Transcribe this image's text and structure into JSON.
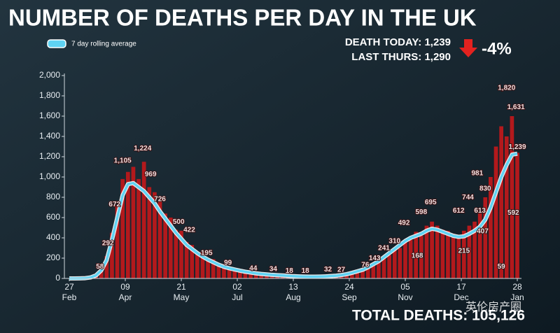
{
  "chart_data": {
    "type": "bar",
    "title": "NUMBER OF DEATHS PER DAY IN THE UK",
    "stats": [
      "DEATH TODAY: 1,239",
      "LAST THURS: 1,290"
    ],
    "change": "-4%",
    "total": "TOTAL DEATHS: 105,126",
    "watermark": "英伦房产圈",
    "color": "#b3191c",
    "xlim": [
      0,
      336
    ],
    "xticks": [
      {
        "value": 0,
        "label": "27 Feb"
      },
      {
        "value": 42,
        "label": "09 Apr"
      },
      {
        "value": 84,
        "label": "21 May"
      },
      {
        "value": 126,
        "label": "02 Jul"
      },
      {
        "value": 168,
        "label": "13 Aug"
      },
      {
        "value": 210,
        "label": "24 Sep"
      },
      {
        "value": 252,
        "label": "05 Nov"
      },
      {
        "value": 294,
        "label": "17 Dec"
      },
      {
        "value": 336,
        "label": "28 Jan"
      }
    ],
    "ylim": [
      0,
      2000
    ],
    "yticks": [
      0,
      200,
      400,
      600,
      800,
      {
        "value": 1000,
        "label": "1,000"
      },
      {
        "value": 1200,
        "label": "1,200"
      },
      {
        "value": 1400,
        "label": "1,400"
      },
      {
        "value": 1600,
        "label": "1,600"
      },
      {
        "value": 1800,
        "label": "1,800"
      },
      {
        "value": 2000,
        "label": "2,000"
      }
    ],
    "x": [
      0,
      4,
      8,
      12,
      16,
      20,
      24,
      28,
      32,
      36,
      40,
      44,
      48,
      52,
      56,
      60,
      64,
      68,
      72,
      76,
      80,
      84,
      88,
      92,
      96,
      100,
      104,
      108,
      112,
      116,
      120,
      124,
      128,
      132,
      136,
      140,
      144,
      148,
      152,
      156,
      160,
      164,
      168,
      172,
      176,
      180,
      184,
      188,
      192,
      196,
      200,
      204,
      208,
      212,
      216,
      220,
      224,
      228,
      232,
      236,
      240,
      244,
      248,
      252,
      256,
      260,
      264,
      268,
      272,
      276,
      280,
      284,
      288,
      292,
      296,
      300,
      304,
      308,
      312,
      316,
      320,
      324,
      328,
      332,
      336
    ],
    "values": [
      0,
      1,
      2,
      4,
      12,
      40,
      90,
      220,
      450,
      720,
      980,
      1050,
      1100,
      980,
      1150,
      900,
      850,
      780,
      640,
      600,
      480,
      470,
      360,
      330,
      250,
      260,
      180,
      190,
      130,
      120,
      95,
      80,
      70,
      60,
      55,
      45,
      40,
      38,
      30,
      35,
      25,
      28,
      20,
      22,
      18,
      19,
      15,
      20,
      18,
      25,
      22,
      35,
      30,
      55,
      70,
      90,
      100,
      140,
      160,
      200,
      230,
      290,
      300,
      360,
      380,
      460,
      420,
      520,
      560,
      520,
      480,
      470,
      440,
      430,
      470,
      520,
      560,
      640,
      800,
      1000,
      1300,
      1500,
      1400,
      1600,
      1239
    ],
    "line": {
      "name": "7 day rolling average",
      "color": "#5fd3f3",
      "values": [
        0,
        0,
        1,
        3,
        10,
        30,
        80,
        180,
        380,
        600,
        820,
        930,
        940,
        900,
        860,
        800,
        740,
        660,
        590,
        520,
        450,
        390,
        330,
        290,
        250,
        215,
        185,
        160,
        135,
        115,
        100,
        88,
        76,
        66,
        58,
        50,
        44,
        40,
        35,
        32,
        29,
        26,
        22,
        20,
        18,
        17,
        17,
        18,
        20,
        23,
        27,
        33,
        42,
        55,
        70,
        85,
        110,
        140,
        170,
        210,
        250,
        290,
        330,
        370,
        400,
        420,
        440,
        470,
        490,
        480,
        460,
        440,
        420,
        410,
        415,
        440,
        470,
        510,
        580,
        700,
        850,
        1000,
        1120,
        1220,
        1230
      ]
    },
    "annotations": {
      "x": [
        23,
        29,
        34,
        40,
        55,
        61,
        68,
        82,
        90,
        103,
        119,
        138,
        153,
        165,
        177,
        194,
        204,
        222,
        229,
        236,
        244,
        251,
        264,
        271,
        261,
        292,
        299,
        296,
        306,
        312,
        308,
        310,
        328,
        335,
        336,
        324,
        333
      ],
      "values": [
        58,
        292,
        672,
        1105,
        1224,
        969,
        726,
        500,
        422,
        195,
        99,
        44,
        34,
        18,
        18,
        32,
        27,
        76,
        143,
        241,
        310,
        492,
        598,
        695,
        168,
        612,
        744,
        215,
        981,
        830,
        613,
        407,
        1820,
        1631,
        1239,
        59,
        592
      ],
      "value_labels": [
        "58",
        "292",
        "672",
        "1,105",
        "1,224",
        "969",
        "726",
        "500",
        "422",
        "195",
        "99",
        "44",
        "34",
        "18",
        "18",
        "32",
        "27",
        "76",
        "143",
        "241",
        "310",
        "492",
        "598",
        "695",
        "168",
        "612",
        "744",
        "215",
        "981",
        "830",
        "613",
        "407",
        "1,820",
        "1,631",
        "1,239",
        "59",
        "592"
      ]
    }
  }
}
